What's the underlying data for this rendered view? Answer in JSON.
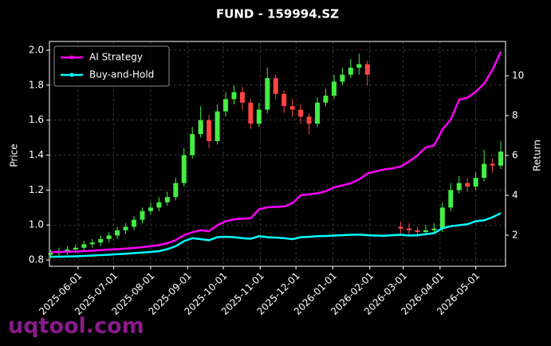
{
  "chart_data": {
    "type": "candlestick",
    "title": "FUND - 159994.SZ",
    "ylabel": "Price",
    "y2label": "Return",
    "watermark": "uqtool.com",
    "xlim": [
      "2025-05-08",
      "2026-05-26"
    ],
    "xticks": [
      "2025-06-01",
      "2025-07-01",
      "2025-08-01",
      "2025-09-01",
      "2025-10-01",
      "2025-11-01",
      "2025-12-01",
      "2026-01-01",
      "2026-02-01",
      "2026-03-01",
      "2026-04-01",
      "2026-05-01"
    ],
    "ylim": [
      0.764,
      2.05
    ],
    "yticks": [
      0.8,
      {
        "value": 1,
        "label": "1.0"
      },
      1.2,
      1.4,
      1.6,
      1.8,
      {
        "value": 2,
        "label": "2.0"
      }
    ],
    "y2lim": [
      0.44,
      11.72
    ],
    "y2ticks": [
      2,
      4,
      6,
      8,
      10
    ],
    "grid": true,
    "legend": "upper left",
    "candles": {
      "up_color": "#44ee44",
      "down_color": "#ff4444",
      "x": [
        "2025-05-09",
        "2025-05-16",
        "2025-05-23",
        "2025-05-30",
        "2025-06-06",
        "2025-06-13",
        "2025-06-20",
        "2025-06-27",
        "2025-07-04",
        "2025-07-11",
        "2025-07-18",
        "2025-07-25",
        "2025-08-01",
        "2025-08-08",
        "2025-08-15",
        "2025-08-22",
        "2025-08-29",
        "2025-09-05",
        "2025-09-12",
        "2025-09-19",
        "2025-09-26",
        "2025-10-03",
        "2025-10-10",
        "2025-10-17",
        "2025-10-24",
        "2025-10-31",
        "2025-11-07",
        "2025-11-14",
        "2025-11-21",
        "2025-11-28",
        "2025-12-05",
        "2025-12-12",
        "2025-12-19",
        "2025-12-26",
        "2026-01-02",
        "2026-01-09",
        "2026-01-16",
        "2026-01-23",
        "2026-01-30",
        "2026-02-27",
        "2026-03-06",
        "2026-03-13",
        "2026-03-20",
        "2026-03-27",
        "2026-04-03",
        "2026-04-10",
        "2026-04-17",
        "2026-04-24",
        "2026-05-01",
        "2026-05-08",
        "2026-05-15",
        "2026-05-22"
      ],
      "open": [
        0.83,
        0.84,
        0.85,
        0.86,
        0.87,
        0.89,
        0.9,
        0.92,
        0.94,
        0.97,
        0.99,
        1.03,
        1.08,
        1.1,
        1.13,
        1.16,
        1.24,
        1.4,
        1.52,
        1.6,
        1.48,
        1.65,
        1.72,
        1.76,
        1.7,
        1.58,
        1.66,
        1.84,
        1.75,
        1.68,
        1.66,
        1.62,
        1.58,
        1.7,
        1.74,
        1.82,
        1.86,
        1.9,
        1.92,
        0.99,
        0.98,
        0.97,
        0.96,
        0.97,
        0.98,
        1.1,
        1.2,
        1.24,
        1.22,
        1.27,
        1.35,
        1.34
      ],
      "high": [
        0.86,
        0.87,
        0.88,
        0.89,
        0.91,
        0.92,
        0.94,
        0.96,
        0.99,
        1.01,
        1.05,
        1.1,
        1.13,
        1.16,
        1.19,
        1.27,
        1.44,
        1.56,
        1.68,
        1.63,
        1.69,
        1.76,
        1.8,
        1.79,
        1.72,
        1.7,
        1.9,
        1.86,
        1.77,
        1.72,
        1.69,
        1.64,
        1.73,
        1.78,
        1.86,
        1.9,
        1.95,
        1.98,
        1.94,
        1.02,
        1.01,
        0.99,
        1.0,
        1.01,
        1.13,
        1.24,
        1.28,
        1.27,
        1.3,
        1.43,
        1.38,
        1.48
      ],
      "low": [
        0.81,
        0.82,
        0.83,
        0.84,
        0.85,
        0.87,
        0.88,
        0.9,
        0.92,
        0.95,
        0.97,
        1.01,
        1.06,
        1.08,
        1.11,
        1.14,
        1.22,
        1.38,
        1.5,
        1.44,
        1.46,
        1.62,
        1.69,
        1.66,
        1.55,
        1.56,
        1.64,
        1.72,
        1.64,
        1.62,
        1.58,
        1.52,
        1.56,
        1.68,
        1.72,
        1.8,
        1.84,
        1.86,
        1.8,
        0.95,
        0.94,
        0.93,
        0.94,
        0.95,
        0.96,
        1.08,
        1.18,
        1.19,
        1.2,
        1.25,
        1.3,
        1.32
      ],
      "close": [
        0.84,
        0.85,
        0.86,
        0.87,
        0.89,
        0.9,
        0.92,
        0.94,
        0.97,
        0.99,
        1.03,
        1.08,
        1.1,
        1.13,
        1.16,
        1.24,
        1.4,
        1.52,
        1.6,
        1.48,
        1.65,
        1.72,
        1.76,
        1.7,
        1.58,
        1.66,
        1.84,
        1.75,
        1.68,
        1.66,
        1.62,
        1.58,
        1.7,
        1.74,
        1.82,
        1.86,
        1.9,
        1.92,
        1.86,
        0.98,
        0.97,
        0.96,
        0.97,
        0.98,
        1.1,
        1.2,
        1.24,
        1.22,
        1.27,
        1.35,
        1.34,
        1.42
      ]
    },
    "x": [
      "2025-05-09",
      "2025-05-16",
      "2025-05-23",
      "2025-05-30",
      "2025-06-06",
      "2025-06-13",
      "2025-06-20",
      "2025-06-27",
      "2025-07-04",
      "2025-07-11",
      "2025-07-18",
      "2025-07-25",
      "2025-08-01",
      "2025-08-08",
      "2025-08-15",
      "2025-08-22",
      "2025-08-29",
      "2025-09-05",
      "2025-09-12",
      "2025-09-19",
      "2025-09-26",
      "2025-10-03",
      "2025-10-10",
      "2025-10-17",
      "2025-10-24",
      "2025-10-31",
      "2025-11-07",
      "2025-11-14",
      "2025-11-21",
      "2025-11-28",
      "2025-12-05",
      "2025-12-12",
      "2025-12-19",
      "2025-12-26",
      "2026-01-02",
      "2026-01-09",
      "2026-01-16",
      "2026-01-23",
      "2026-01-30",
      "2026-02-06",
      "2026-02-13",
      "2026-02-20",
      "2026-02-27",
      "2026-03-06",
      "2026-03-13",
      "2026-03-20",
      "2026-03-27",
      "2026-04-03",
      "2026-04-10",
      "2026-04-17",
      "2026-04-24",
      "2026-05-01",
      "2026-05-08",
      "2026-05-15",
      "2026-05-22"
    ],
    "series": [
      {
        "name": "AI Strategy",
        "color": "#ff00ff",
        "axis": "y2",
        "values": [
          1.15,
          1.16,
          1.17,
          1.18,
          1.2,
          1.22,
          1.25,
          1.28,
          1.3,
          1.33,
          1.36,
          1.4,
          1.45,
          1.5,
          1.6,
          1.75,
          2.0,
          2.15,
          2.25,
          2.2,
          2.5,
          2.7,
          2.8,
          2.82,
          2.85,
          3.3,
          3.4,
          3.42,
          3.44,
          3.6,
          4.0,
          4.05,
          4.1,
          4.2,
          4.4,
          4.5,
          4.6,
          4.8,
          5.1,
          5.2,
          5.3,
          5.35,
          5.45,
          5.7,
          6.0,
          6.4,
          6.5,
          7.3,
          7.8,
          8.8,
          8.9,
          9.2,
          9.6,
          10.3,
          11.2
        ]
      },
      {
        "name": "Buy-and-Hold",
        "color": "#00ffff",
        "axis": "y2",
        "values": [
          0.92,
          0.92,
          0.93,
          0.94,
          0.96,
          0.98,
          1.0,
          1.02,
          1.05,
          1.07,
          1.1,
          1.13,
          1.16,
          1.2,
          1.3,
          1.45,
          1.7,
          1.85,
          1.8,
          1.75,
          1.9,
          1.92,
          1.9,
          1.85,
          1.82,
          1.95,
          1.9,
          1.88,
          1.85,
          1.8,
          1.9,
          1.92,
          1.95,
          1.96,
          1.98,
          2.0,
          2.02,
          2.03,
          2.0,
          1.98,
          1.97,
          2.0,
          2.02,
          1.98,
          2.0,
          2.05,
          2.1,
          2.35,
          2.45,
          2.5,
          2.55,
          2.7,
          2.75,
          2.9,
          3.1
        ]
      }
    ]
  }
}
